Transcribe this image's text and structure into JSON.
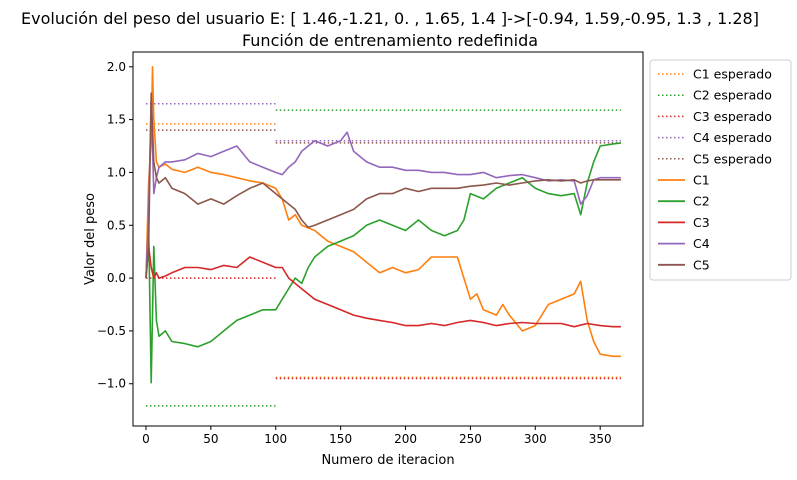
{
  "chart_data": {
    "type": "line",
    "title": "Evolución del peso del usuario E: [ 1.46,-1.21, 0.  , 1.65, 1.4 ]->[-0.94, 1.59,-0.95, 1.3 , 1.28]",
    "subtitle": "Función de entrenamiento redefinida",
    "xlabel": "Numero de iteracion",
    "ylabel": "Valor del peso",
    "xlim": [
      -10,
      383
    ],
    "ylim": [
      -1.4,
      2.14
    ],
    "xticks": [
      0,
      50,
      100,
      150,
      200,
      250,
      300,
      350
    ],
    "yticks": [
      -1.0,
      -0.5,
      0.0,
      0.5,
      1.0,
      1.5,
      2.0
    ],
    "xtick_labels": [
      "0",
      "50",
      "100",
      "150",
      "200",
      "250",
      "300",
      "350"
    ],
    "ytick_labels": [
      "−1.0",
      "−0.5",
      "0.0",
      "0.5",
      "1.0",
      "1.5",
      "2.0"
    ],
    "grid": false,
    "legend_position": "outside-right",
    "legend": [
      {
        "label": "C1 esperado",
        "color": "#ff7f0e",
        "style": "dotted"
      },
      {
        "label": "C2 esperado",
        "color": "#2ca02c",
        "style": "dotted"
      },
      {
        "label": "C3 esperado",
        "color": "#d62728",
        "style": "dotted"
      },
      {
        "label": "C4 esperado",
        "color": "#9467bd",
        "style": "dotted"
      },
      {
        "label": "C5 esperado",
        "color": "#8c564b",
        "style": "dotted"
      },
      {
        "label": "C1",
        "color": "#ff7f0e",
        "style": "solid"
      },
      {
        "label": "C2",
        "color": "#2ca02c",
        "style": "solid"
      },
      {
        "label": "C3",
        "color": "#d62728",
        "style": "solid"
      },
      {
        "label": "C4",
        "color": "#9467bd",
        "style": "solid"
      },
      {
        "label": "C5",
        "color": "#8c564b",
        "style": "solid"
      }
    ],
    "expected_series": [
      {
        "name": "C1 esperado",
        "color": "#ff7f0e",
        "segments": [
          {
            "x": [
              0,
              100
            ],
            "y": 1.46
          },
          {
            "x": [
              100,
              366
            ],
            "y": -0.94
          }
        ]
      },
      {
        "name": "C2 esperado",
        "color": "#2ca02c",
        "segments": [
          {
            "x": [
              0,
              100
            ],
            "y": -1.21
          },
          {
            "x": [
              100,
              366
            ],
            "y": 1.59
          }
        ]
      },
      {
        "name": "C3 esperado",
        "color": "#d62728",
        "segments": [
          {
            "x": [
              0,
              100
            ],
            "y": 0.0
          },
          {
            "x": [
              100,
              366
            ],
            "y": -0.95
          }
        ]
      },
      {
        "name": "C4 esperado",
        "color": "#9467bd",
        "segments": [
          {
            "x": [
              0,
              100
            ],
            "y": 1.65
          },
          {
            "x": [
              100,
              366
            ],
            "y": 1.3
          }
        ]
      },
      {
        "name": "C5 esperado",
        "color": "#8c564b",
        "segments": [
          {
            "x": [
              0,
              100
            ],
            "y": 1.4
          },
          {
            "x": [
              100,
              366
            ],
            "y": 1.28
          }
        ]
      }
    ],
    "series": [
      {
        "name": "C1",
        "color": "#ff7f0e",
        "x": [
          0,
          2,
          4,
          5,
          6,
          8,
          10,
          15,
          20,
          30,
          40,
          50,
          60,
          70,
          80,
          90,
          100,
          105,
          110,
          115,
          120,
          130,
          140,
          150,
          160,
          170,
          180,
          190,
          200,
          210,
          220,
          230,
          240,
          245,
          250,
          255,
          260,
          270,
          275,
          280,
          290,
          300,
          310,
          320,
          330,
          335,
          340,
          345,
          350,
          360,
          366
        ],
        "y": [
          0.0,
          0.9,
          1.3,
          2.0,
          1.5,
          1.1,
          1.05,
          1.08,
          1.03,
          1.0,
          1.05,
          1.0,
          0.98,
          0.95,
          0.92,
          0.9,
          0.85,
          0.75,
          0.55,
          0.6,
          0.5,
          0.45,
          0.35,
          0.3,
          0.25,
          0.15,
          0.05,
          0.1,
          0.05,
          0.08,
          0.2,
          0.2,
          0.2,
          0.0,
          -0.2,
          -0.15,
          -0.3,
          -0.35,
          -0.25,
          -0.35,
          -0.5,
          -0.45,
          -0.25,
          -0.2,
          -0.15,
          -0.03,
          -0.4,
          -0.6,
          -0.72,
          -0.74,
          -0.74
        ]
      },
      {
        "name": "C2",
        "color": "#2ca02c",
        "x": [
          0,
          2,
          4,
          6,
          8,
          10,
          15,
          20,
          30,
          40,
          50,
          60,
          70,
          80,
          90,
          100,
          105,
          110,
          115,
          120,
          125,
          130,
          140,
          150,
          160,
          170,
          180,
          190,
          200,
          210,
          220,
          230,
          240,
          245,
          250,
          260,
          270,
          280,
          290,
          300,
          310,
          320,
          330,
          335,
          340,
          345,
          350,
          360,
          366
        ],
        "y": [
          0.0,
          0.5,
          -0.99,
          0.3,
          -0.4,
          -0.55,
          -0.5,
          -0.6,
          -0.62,
          -0.65,
          -0.6,
          -0.5,
          -0.4,
          -0.35,
          -0.3,
          -0.3,
          -0.2,
          -0.1,
          0.0,
          -0.05,
          0.1,
          0.2,
          0.3,
          0.35,
          0.4,
          0.5,
          0.55,
          0.5,
          0.45,
          0.55,
          0.45,
          0.4,
          0.45,
          0.55,
          0.8,
          0.75,
          0.85,
          0.9,
          0.95,
          0.85,
          0.8,
          0.78,
          0.8,
          0.6,
          0.9,
          1.1,
          1.25,
          1.27,
          1.28
        ]
      },
      {
        "name": "C3",
        "color": "#d62728",
        "x": [
          0,
          2,
          4,
          6,
          8,
          10,
          15,
          20,
          30,
          40,
          50,
          60,
          70,
          80,
          90,
          100,
          105,
          110,
          120,
          130,
          140,
          150,
          160,
          170,
          180,
          190,
          200,
          210,
          220,
          230,
          240,
          250,
          260,
          270,
          280,
          290,
          300,
          320,
          330,
          340,
          350,
          360,
          366
        ],
        "y": [
          0.0,
          0.3,
          0.1,
          0.0,
          0.05,
          0.0,
          0.02,
          0.05,
          0.1,
          0.1,
          0.08,
          0.12,
          0.1,
          0.2,
          0.15,
          0.1,
          0.1,
          0.0,
          -0.1,
          -0.2,
          -0.25,
          -0.3,
          -0.35,
          -0.38,
          -0.4,
          -0.42,
          -0.45,
          -0.45,
          -0.43,
          -0.45,
          -0.42,
          -0.4,
          -0.42,
          -0.45,
          -0.43,
          -0.42,
          -0.43,
          -0.43,
          -0.46,
          -0.43,
          -0.45,
          -0.46,
          -0.46
        ]
      },
      {
        "name": "C4",
        "color": "#9467bd",
        "x": [
          0,
          2,
          4,
          6,
          8,
          10,
          15,
          20,
          30,
          40,
          50,
          60,
          70,
          80,
          90,
          100,
          105,
          110,
          115,
          120,
          130,
          140,
          150,
          155,
          160,
          170,
          180,
          190,
          200,
          210,
          220,
          230,
          240,
          250,
          260,
          270,
          280,
          290,
          300,
          310,
          320,
          330,
          335,
          340,
          345,
          350,
          360,
          366
        ],
        "y": [
          0.0,
          0.6,
          1.7,
          0.8,
          0.95,
          1.05,
          1.1,
          1.1,
          1.12,
          1.18,
          1.15,
          1.2,
          1.25,
          1.1,
          1.05,
          1.0,
          0.98,
          1.05,
          1.1,
          1.2,
          1.3,
          1.25,
          1.3,
          1.38,
          1.2,
          1.1,
          1.05,
          1.05,
          1.02,
          1.02,
          1.0,
          1.0,
          0.98,
          0.98,
          1.0,
          0.95,
          0.97,
          0.98,
          0.95,
          0.92,
          0.93,
          0.92,
          0.7,
          0.78,
          0.93,
          0.95,
          0.95,
          0.95
        ]
      },
      {
        "name": "C5",
        "color": "#8c564b",
        "x": [
          0,
          2,
          4,
          6,
          8,
          10,
          15,
          20,
          30,
          40,
          50,
          60,
          70,
          80,
          90,
          100,
          105,
          110,
          115,
          120,
          125,
          130,
          140,
          150,
          160,
          170,
          180,
          190,
          200,
          210,
          220,
          230,
          240,
          250,
          260,
          270,
          280,
          290,
          300,
          310,
          320,
          330,
          335,
          340,
          345,
          350,
          360,
          366
        ],
        "y": [
          0.0,
          0.3,
          1.75,
          1.1,
          0.95,
          0.9,
          0.95,
          0.85,
          0.8,
          0.7,
          0.75,
          0.7,
          0.78,
          0.85,
          0.9,
          0.8,
          0.75,
          0.7,
          0.65,
          0.55,
          0.48,
          0.5,
          0.55,
          0.6,
          0.65,
          0.75,
          0.8,
          0.8,
          0.85,
          0.82,
          0.85,
          0.85,
          0.85,
          0.87,
          0.88,
          0.9,
          0.88,
          0.9,
          0.92,
          0.93,
          0.92,
          0.93,
          0.9,
          0.92,
          0.93,
          0.93,
          0.93,
          0.93
        ]
      }
    ]
  }
}
